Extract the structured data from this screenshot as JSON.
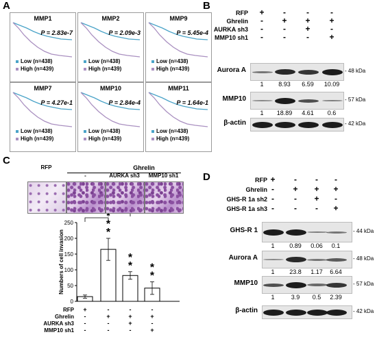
{
  "panelA": {
    "label": "A",
    "plots": [
      {
        "title": "MMP1",
        "p": "2.83e-7"
      },
      {
        "title": "MMP2",
        "p": "2.09e-3"
      },
      {
        "title": "MMP9",
        "p": "5.45e-4"
      },
      {
        "title": "MMP7",
        "p": "4.27e-1"
      },
      {
        "title": "MMP10",
        "p": "2.84e-4"
      },
      {
        "title": "MMP11",
        "p": "1.64e-1"
      }
    ],
    "p_prefix": "P = ",
    "legend_low": "Low   (n=438)",
    "legend_high": "High  (n=439)",
    "low_color": "#4aa3c8",
    "high_color": "#a98fc0"
  },
  "panelB": {
    "label": "B",
    "rows": [
      {
        "name": "RFP",
        "syms": [
          "+",
          "-",
          "-",
          "-"
        ]
      },
      {
        "name": "Ghrelin",
        "syms": [
          "-",
          "+",
          "+",
          "+"
        ]
      },
      {
        "name": "AURKA sh3",
        "syms": [
          "-",
          "-",
          "+",
          "-"
        ]
      },
      {
        "name": "MMP10 sh1",
        "syms": [
          "-",
          "-",
          "-",
          "+"
        ]
      }
    ],
    "blots": [
      {
        "name": "Aurora A",
        "kda": "48 kDa",
        "nums": [
          "1",
          "8.93",
          "6.59",
          "10.09"
        ]
      },
      {
        "name": "MMP10",
        "kda": "57 kDa",
        "nums": [
          "1",
          "18.89",
          "4.61",
          "0.6"
        ]
      },
      {
        "name": "β-actin",
        "kda": "42 kDa",
        "nums": []
      }
    ]
  },
  "panelC": {
    "label": "C",
    "ghrelin_header": "Ghrelin",
    "image_labels": [
      "RFP",
      "-",
      "AURKA sh3",
      "MMP10 sh1"
    ],
    "chart_data": {
      "type": "bar",
      "ylabel": "Numbers of cell invasion",
      "ylim": [
        0,
        250
      ],
      "yticks": [
        "0",
        "50",
        "100",
        "150",
        "200",
        "250"
      ],
      "values": [
        15,
        165,
        82,
        42
      ],
      "errors": [
        5,
        35,
        12,
        20
      ],
      "significance": [
        "",
        "***",
        "**",
        "**"
      ]
    },
    "rows": [
      {
        "name": "RFP",
        "syms": [
          "+",
          "-",
          "-",
          "-"
        ]
      },
      {
        "name": "Ghrelin",
        "syms": [
          "-",
          "+",
          "+",
          "+"
        ]
      },
      {
        "name": "AURKA sh3",
        "syms": [
          "-",
          "-",
          "+",
          "-"
        ]
      },
      {
        "name": "MMP10 sh1",
        "syms": [
          "-",
          "-",
          "-",
          "+"
        ]
      }
    ]
  },
  "panelD": {
    "label": "D",
    "rows": [
      {
        "name": "RFP",
        "syms": [
          "+",
          "-",
          "-",
          "-"
        ]
      },
      {
        "name": "Ghrelin",
        "syms": [
          "-",
          "+",
          "+",
          "+"
        ]
      },
      {
        "name": "GHS-R 1a sh2",
        "syms": [
          "-",
          "-",
          "+",
          "-"
        ]
      },
      {
        "name": "GHS-R 1a sh3",
        "syms": [
          "-",
          "-",
          "-",
          "+"
        ]
      }
    ],
    "blots": [
      {
        "name": "GHS-R 1",
        "kda": "44 kDa",
        "nums": [
          "1",
          "0.89",
          "0.06",
          "0.1"
        ]
      },
      {
        "name": "Aurora A",
        "kda": "48 kDa",
        "nums": [
          "1",
          "23.8",
          "1.17",
          "6.64"
        ]
      },
      {
        "name": "MMP10",
        "kda": "57 kDa",
        "nums": [
          "1",
          "3.9",
          "0.5",
          "2.39"
        ]
      },
      {
        "name": "β-actin",
        "kda": "42 kDa",
        "nums": []
      }
    ]
  }
}
